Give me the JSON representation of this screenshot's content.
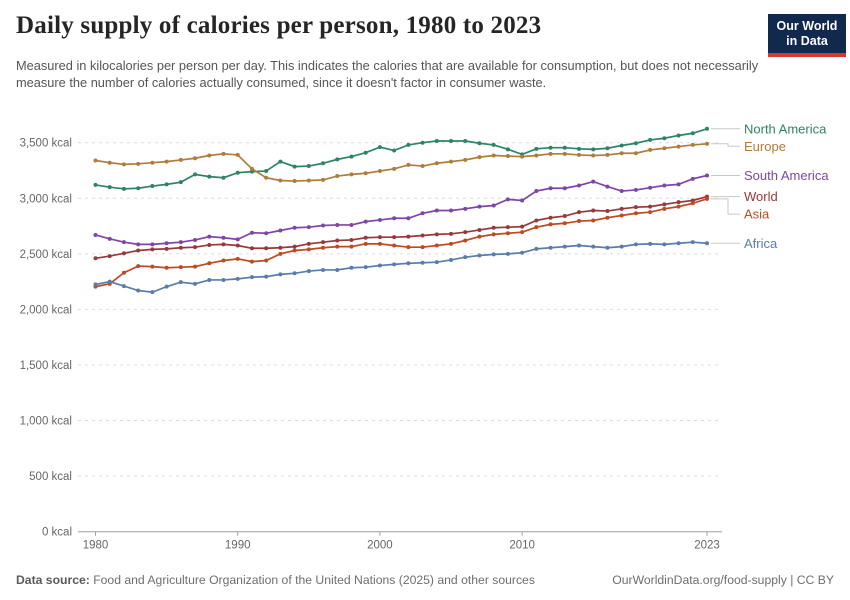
{
  "header": {
    "title": "Daily supply of calories per person, 1980 to 2023",
    "subtitle": "Measured in kilocalories per person per day. This indicates the calories that are available for consumption, but does not necessarily measure the number of calories actually consumed, since it doesn't factor in consumer waste.",
    "logo": {
      "line1": "Our World",
      "line2": "in Data",
      "bg_color": "#12294E",
      "accent_color": "#D83731"
    }
  },
  "footer": {
    "source_label": "Data source:",
    "source_text": " Food and Agriculture Organization of the United Nations (2025) and other sources",
    "link_text": "OurWorldinData.org/food-supply | CC BY"
  },
  "chart_data": {
    "type": "line",
    "unit": "kcal",
    "x": [
      1980,
      1981,
      1982,
      1983,
      1984,
      1985,
      1986,
      1987,
      1988,
      1989,
      1990,
      1991,
      1992,
      1993,
      1994,
      1995,
      1996,
      1997,
      1998,
      1999,
      2000,
      2001,
      2002,
      2003,
      2004,
      2005,
      2006,
      2007,
      2008,
      2009,
      2010,
      2011,
      2012,
      2013,
      2014,
      2015,
      2016,
      2017,
      2018,
      2019,
      2020,
      2021,
      2022,
      2023
    ],
    "x_ticks": [
      1980,
      1990,
      2000,
      2010,
      2023
    ],
    "y_tick_labels": [
      "0 kcal",
      "500 kcal",
      "1,000 kcal",
      "1,500 kcal",
      "2,000 kcal",
      "2,500 kcal",
      "3,000 kcal",
      "3,500 kcal"
    ],
    "y_tick_values": [
      0,
      500,
      1000,
      1500,
      2000,
      2500,
      3000,
      3500
    ],
    "ylim": [
      0,
      3500
    ],
    "grid": "horizontal dashed",
    "legend_position": "right",
    "axis_color": "#9e9e9e",
    "grid_color": "#dcdcdc",
    "tick_label_color": "#666666",
    "connector_color": "#c8c8c8",
    "series": [
      {
        "name": "North America",
        "color": "#2C8465",
        "values": [
          3120,
          3100,
          3085,
          3090,
          3110,
          3125,
          3145,
          3215,
          3195,
          3185,
          3230,
          3240,
          3245,
          3330,
          3285,
          3290,
          3315,
          3350,
          3375,
          3410,
          3460,
          3430,
          3480,
          3500,
          3515,
          3515,
          3515,
          3495,
          3480,
          3440,
          3395,
          3445,
          3455,
          3455,
          3445,
          3440,
          3450,
          3475,
          3495,
          3525,
          3540,
          3565,
          3585,
          3625
        ]
      },
      {
        "name": "Europe",
        "color": "#AE7C3B",
        "values": [
          3340,
          3320,
          3305,
          3310,
          3320,
          3330,
          3345,
          3360,
          3385,
          3400,
          3390,
          3265,
          3185,
          3160,
          3155,
          3160,
          3165,
          3200,
          3215,
          3225,
          3245,
          3265,
          3300,
          3290,
          3315,
          3330,
          3345,
          3370,
          3385,
          3380,
          3375,
          3385,
          3400,
          3400,
          3390,
          3385,
          3390,
          3405,
          3405,
          3435,
          3450,
          3465,
          3480,
          3490
        ]
      },
      {
        "name": "South America",
        "color": "#7E45A8",
        "values": [
          2670,
          2635,
          2605,
          2585,
          2585,
          2595,
          2605,
          2625,
          2655,
          2645,
          2630,
          2690,
          2685,
          2710,
          2735,
          2740,
          2755,
          2760,
          2760,
          2790,
          2805,
          2820,
          2820,
          2865,
          2890,
          2890,
          2905,
          2925,
          2935,
          2990,
          2980,
          3065,
          3090,
          3090,
          3115,
          3150,
          3105,
          3065,
          3075,
          3095,
          3115,
          3125,
          3175,
          3205
        ]
      },
      {
        "name": "World",
        "color": "#98383A",
        "values": [
          2460,
          2480,
          2505,
          2530,
          2540,
          2545,
          2555,
          2560,
          2580,
          2585,
          2575,
          2550,
          2550,
          2555,
          2565,
          2590,
          2605,
          2620,
          2625,
          2645,
          2650,
          2650,
          2655,
          2665,
          2675,
          2680,
          2695,
          2715,
          2735,
          2740,
          2745,
          2800,
          2825,
          2840,
          2875,
          2890,
          2885,
          2905,
          2920,
          2925,
          2945,
          2965,
          2980,
          3015
        ]
      },
      {
        "name": "Asia",
        "color": "#BC4B22",
        "values": [
          2205,
          2230,
          2330,
          2390,
          2385,
          2375,
          2380,
          2385,
          2415,
          2440,
          2455,
          2430,
          2440,
          2500,
          2530,
          2540,
          2555,
          2565,
          2565,
          2590,
          2590,
          2575,
          2560,
          2560,
          2575,
          2590,
          2620,
          2655,
          2675,
          2685,
          2695,
          2740,
          2765,
          2775,
          2795,
          2800,
          2825,
          2845,
          2865,
          2875,
          2905,
          2925,
          2955,
          2995
        ]
      },
      {
        "name": "Africa",
        "color": "#597DAB",
        "values": [
          2225,
          2250,
          2210,
          2170,
          2155,
          2205,
          2245,
          2230,
          2265,
          2265,
          2275,
          2290,
          2295,
          2315,
          2325,
          2345,
          2355,
          2355,
          2375,
          2380,
          2395,
          2405,
          2415,
          2420,
          2425,
          2445,
          2470,
          2485,
          2495,
          2500,
          2510,
          2545,
          2555,
          2565,
          2575,
          2565,
          2555,
          2565,
          2585,
          2590,
          2585,
          2595,
          2605,
          2595
        ]
      }
    ]
  }
}
